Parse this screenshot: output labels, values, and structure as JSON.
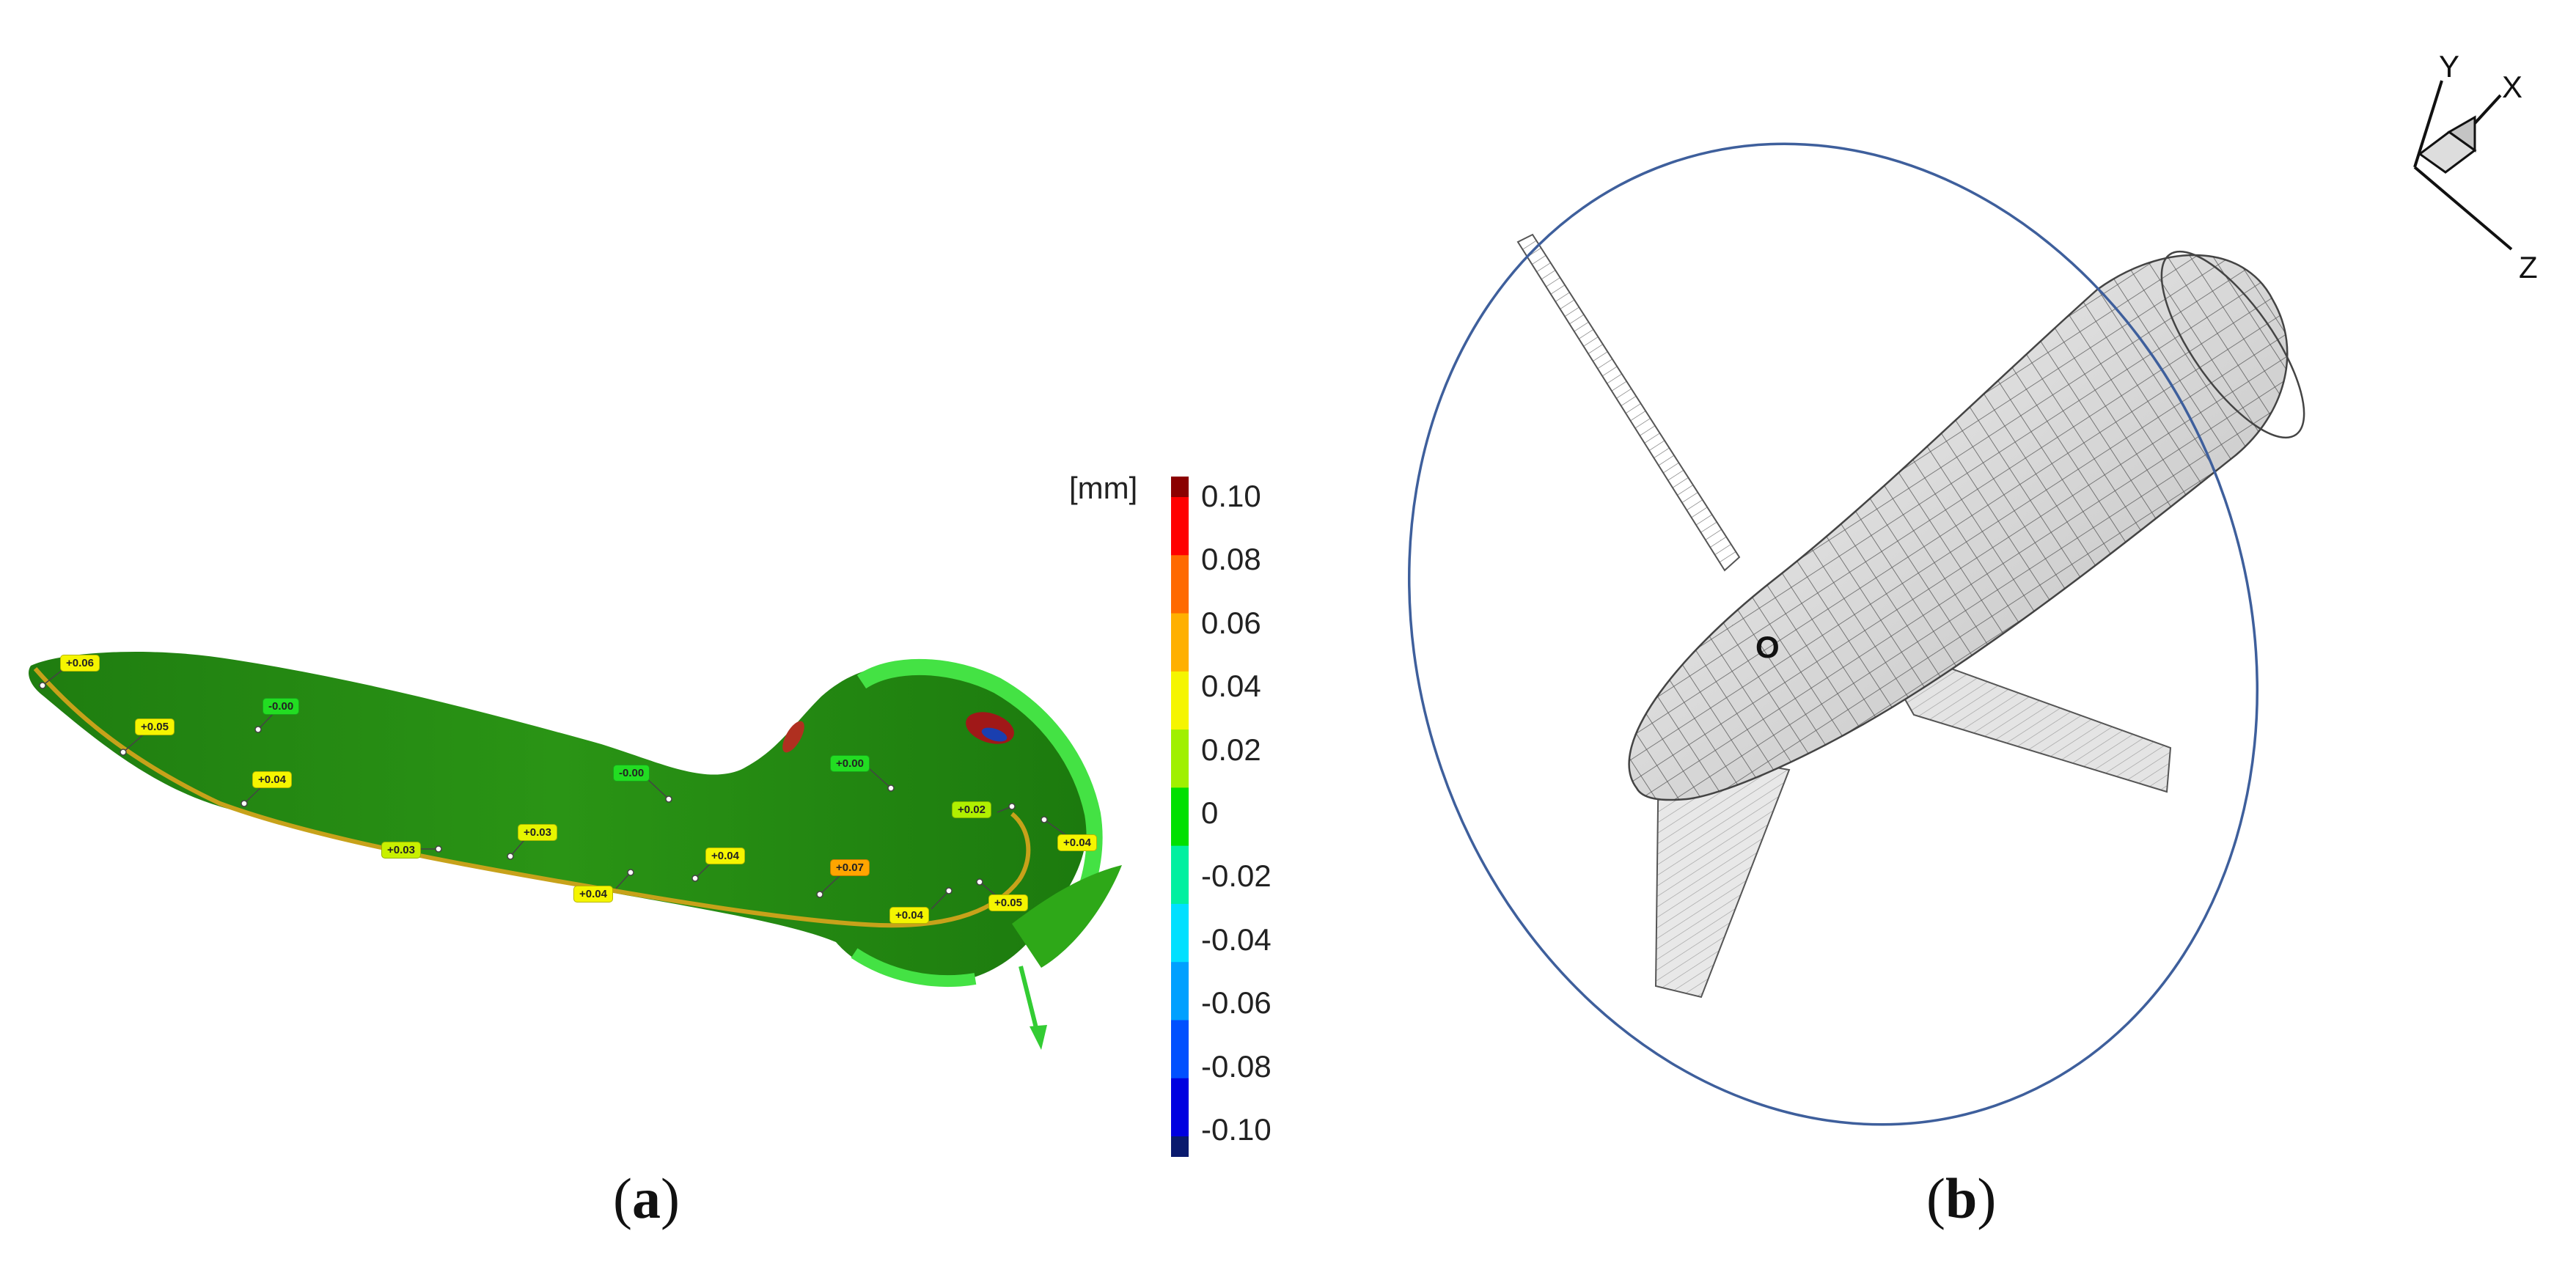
{
  "captions": {
    "a": "a",
    "b": "b"
  },
  "colorbar": {
    "unit": "[mm]",
    "ticks": [
      "0.10",
      "0.08",
      "0.06",
      "0.04",
      "0.02",
      "0",
      "-0.02",
      "-0.04",
      "-0.06",
      "-0.08",
      "-0.10"
    ],
    "top_color": "#8b0000",
    "bottom_color": "#0a1a6e",
    "colors": [
      "#ff0000",
      "#ff6a00",
      "#ffb000",
      "#f5f500",
      "#a0f000",
      "#00e000",
      "#00f0a0",
      "#00e0ff",
      "#00a0ff",
      "#0050ff",
      "#0000e0"
    ]
  },
  "deviation_labels": [
    {
      "text": "+0.06",
      "color": "#f5f500"
    },
    {
      "text": "+0.05",
      "color": "#f5f500"
    },
    {
      "text": "-0.00",
      "color": "#22dd22"
    },
    {
      "text": "+0.04",
      "color": "#f5f500"
    },
    {
      "text": "-0.00",
      "color": "#22dd22"
    },
    {
      "text": "+0.00",
      "color": "#22dd22"
    },
    {
      "text": "+0.03",
      "color": "#c8f000"
    },
    {
      "text": "+0.03",
      "color": "#e6f500"
    },
    {
      "text": "+0.04",
      "color": "#f5f500"
    },
    {
      "text": "+0.02",
      "color": "#b0f000"
    },
    {
      "text": "+0.07",
      "color": "#ffa500"
    },
    {
      "text": "+0.04",
      "color": "#f5f500"
    },
    {
      "text": "+0.04",
      "color": "#f5f500"
    },
    {
      "text": "+0.04",
      "color": "#f5f500"
    },
    {
      "text": "+0.05",
      "color": "#f5f500"
    }
  ],
  "model_b": {
    "origin_label": "O",
    "axes": [
      "Y",
      "X",
      "Z"
    ]
  }
}
